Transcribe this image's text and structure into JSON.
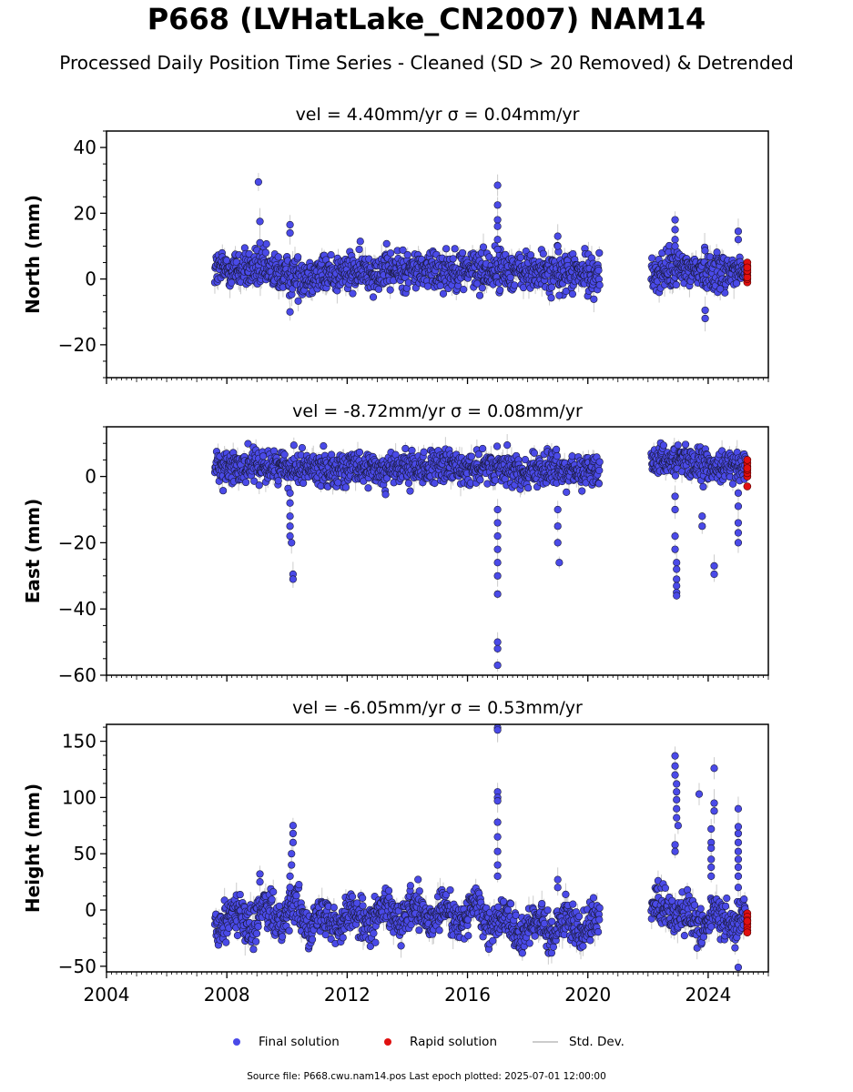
{
  "title": "P668 (LVHatLake_CN2007) NAM14",
  "subtitle": "Processed Daily Position Time Series - Cleaned (SD > 20 Removed) & Detrended",
  "footer": "Source file: P668.cwu.nam14.pos  Last epoch plotted: 2025-07-01 12:00:00",
  "legend": {
    "final": "Final solution",
    "rapid": "Rapid solution",
    "stddev": "Std. Dev."
  },
  "colors": {
    "final": "#4a4ae8",
    "rapid": "#e01010",
    "stddev": "#cccccc",
    "edge": "#1a1a3a"
  },
  "chart_data": [
    {
      "type": "scatter",
      "panel": "north",
      "title": "vel = 4.40mm/yr   σ = 0.04mm/yr",
      "ylabel": "North (mm)",
      "xlim": [
        2004,
        2026
      ],
      "ylim": [
        -30,
        45
      ],
      "yticks": [
        -20,
        0,
        20,
        40
      ],
      "xticks": [
        2004,
        2008,
        2012,
        2016,
        2020,
        2024
      ],
      "data_span": [
        2007.6,
        2025.4
      ],
      "gap": [
        2020.4,
        2022.1
      ],
      "base": [
        [
          2007.6,
          3
        ],
        [
          2009.0,
          3
        ],
        [
          2010.2,
          1
        ],
        [
          2013,
          2.5
        ],
        [
          2016,
          3
        ],
        [
          2017.5,
          2.5
        ],
        [
          2020.3,
          1.5
        ],
        [
          2022.1,
          1
        ],
        [
          2022.8,
          3
        ],
        [
          2023.3,
          3
        ],
        [
          2025.4,
          2
        ]
      ],
      "noise": 3,
      "outliers": [
        [
          2009.05,
          29.5
        ],
        [
          2009.1,
          17.5
        ],
        [
          2009.1,
          11
        ],
        [
          2010.1,
          16.5
        ],
        [
          2010.1,
          14
        ],
        [
          2010.1,
          -10
        ],
        [
          2017.0,
          28.5
        ],
        [
          2017.0,
          22.5
        ],
        [
          2017.0,
          18
        ],
        [
          2017.0,
          16
        ],
        [
          2017.0,
          12
        ],
        [
          2017.0,
          9
        ],
        [
          2019.0,
          13
        ],
        [
          2019.0,
          10
        ],
        [
          2019.05,
          -5
        ],
        [
          2022.9,
          18
        ],
        [
          2022.9,
          15
        ],
        [
          2022.9,
          12
        ],
        [
          2022.9,
          10
        ],
        [
          2023.9,
          -9.5
        ],
        [
          2023.9,
          -12
        ],
        [
          2024.4,
          -3
        ],
        [
          2025.0,
          14.5
        ],
        [
          2025.0,
          12
        ]
      ],
      "rapid": {
        "x": 2025.3,
        "y_values": [
          -1,
          0,
          1,
          2,
          3,
          4,
          5,
          0.5,
          2.5,
          3.5
        ]
      }
    },
    {
      "type": "scatter",
      "panel": "east",
      "title": "vel = -8.72mm/yr   σ = 0.08mm/yr",
      "ylabel": "East (mm)",
      "xlim": [
        2004,
        2026
      ],
      "ylim": [
        -60,
        15
      ],
      "yticks": [
        -60,
        -40,
        -20,
        0
      ],
      "xticks": [
        2004,
        2008,
        2012,
        2016,
        2020,
        2024
      ],
      "data_span": [
        2007.6,
        2025.4
      ],
      "gap": [
        2020.4,
        2022.1
      ],
      "base": [
        [
          2007.6,
          3
        ],
        [
          2010.2,
          3
        ],
        [
          2013,
          2
        ],
        [
          2016,
          3
        ],
        [
          2017.5,
          2
        ],
        [
          2020.3,
          2
        ],
        [
          2022.1,
          3
        ],
        [
          2023.2,
          6
        ],
        [
          2023.6,
          3
        ],
        [
          2025.4,
          3
        ]
      ],
      "noise": 2.5,
      "outliers": [
        [
          2010.1,
          -5
        ],
        [
          2010.1,
          -8
        ],
        [
          2010.1,
          -12
        ],
        [
          2010.1,
          -15
        ],
        [
          2010.1,
          -18
        ],
        [
          2010.15,
          -20
        ],
        [
          2010.2,
          -29.5
        ],
        [
          2010.2,
          -31
        ],
        [
          2017.0,
          -10
        ],
        [
          2017.0,
          -14
        ],
        [
          2017.0,
          -18
        ],
        [
          2017.0,
          -22
        ],
        [
          2017.0,
          -26
        ],
        [
          2017.0,
          -30
        ],
        [
          2017.0,
          -35.5
        ],
        [
          2017.0,
          -50
        ],
        [
          2017.0,
          -52
        ],
        [
          2017.0,
          -57
        ],
        [
          2019.0,
          -10
        ],
        [
          2019.0,
          -15
        ],
        [
          2019.0,
          -20
        ],
        [
          2019.05,
          -26
        ],
        [
          2022.9,
          -6
        ],
        [
          2022.9,
          -10
        ],
        [
          2022.9,
          -18
        ],
        [
          2022.9,
          -22
        ],
        [
          2022.95,
          -26
        ],
        [
          2022.95,
          -28
        ],
        [
          2022.95,
          -31
        ],
        [
          2022.95,
          -33
        ],
        [
          2022.95,
          -35
        ],
        [
          2022.95,
          -36
        ],
        [
          2023.8,
          -12
        ],
        [
          2023.8,
          -15
        ],
        [
          2024.2,
          -27
        ],
        [
          2024.2,
          -29.5
        ],
        [
          2025.0,
          -5
        ],
        [
          2025.0,
          -9
        ],
        [
          2025.0,
          -14
        ],
        [
          2025.0,
          -17
        ],
        [
          2025.0,
          -20
        ]
      ],
      "rapid": {
        "x": 2025.3,
        "y_values": [
          -3,
          0,
          1,
          2,
          3,
          4,
          5,
          2.5
        ]
      }
    },
    {
      "type": "scatter",
      "panel": "height",
      "title": "vel = -6.05mm/yr   σ = 0.53mm/yr",
      "ylabel": "Height (mm)",
      "xlim": [
        2004,
        2026
      ],
      "ylim": [
        -55,
        165
      ],
      "yticks": [
        -50,
        0,
        50,
        100,
        150
      ],
      "xticks": [
        2004,
        2008,
        2012,
        2016,
        2020,
        2024
      ],
      "xtick_labels": [
        "2004",
        "2008",
        "2012",
        "2016",
        "2020",
        "2024"
      ],
      "data_span": [
        2007.6,
        2025.4
      ],
      "gap": [
        2020.4,
        2022.1
      ],
      "base": [
        [
          2007.6,
          -5
        ],
        [
          2009.0,
          -8
        ],
        [
          2010.0,
          0
        ],
        [
          2011,
          -8
        ],
        [
          2013,
          -5
        ],
        [
          2016,
          -5
        ],
        [
          2016.3,
          0
        ],
        [
          2017.5,
          -15
        ],
        [
          2020.3,
          -12
        ],
        [
          2022.1,
          -5
        ],
        [
          2022.6,
          8
        ],
        [
          2023.2,
          -10
        ],
        [
          2025.4,
          -8
        ]
      ],
      "noise": 9,
      "outliers": [
        [
          2009.1,
          32
        ],
        [
          2009.1,
          25
        ],
        [
          2010.1,
          20
        ],
        [
          2010.1,
          30
        ],
        [
          2010.15,
          40
        ],
        [
          2010.15,
          50
        ],
        [
          2010.2,
          60
        ],
        [
          2010.2,
          68
        ],
        [
          2010.2,
          75
        ],
        [
          2017.0,
          162
        ],
        [
          2017.0,
          160
        ],
        [
          2017.0,
          105
        ],
        [
          2017.0,
          100
        ],
        [
          2017.0,
          97
        ],
        [
          2017.0,
          78
        ],
        [
          2017.0,
          65
        ],
        [
          2017.0,
          52
        ],
        [
          2017.0,
          40
        ],
        [
          2017.0,
          30
        ],
        [
          2019.0,
          27
        ],
        [
          2019.0,
          20
        ],
        [
          2022.9,
          137
        ],
        [
          2022.9,
          128
        ],
        [
          2022.9,
          120
        ],
        [
          2022.95,
          112
        ],
        [
          2022.95,
          105
        ],
        [
          2022.95,
          98
        ],
        [
          2022.95,
          90
        ],
        [
          2022.95,
          82
        ],
        [
          2023.0,
          75
        ],
        [
          2022.9,
          58
        ],
        [
          2022.9,
          52
        ],
        [
          2023.7,
          103
        ],
        [
          2024.2,
          126
        ],
        [
          2024.2,
          95
        ],
        [
          2024.2,
          88
        ],
        [
          2024.1,
          72
        ],
        [
          2024.1,
          60
        ],
        [
          2024.1,
          55
        ],
        [
          2024.1,
          45
        ],
        [
          2024.1,
          38
        ],
        [
          2024.1,
          30
        ],
        [
          2025.0,
          90
        ],
        [
          2025.0,
          74
        ],
        [
          2025.0,
          68
        ],
        [
          2025.0,
          60
        ],
        [
          2025.0,
          52
        ],
        [
          2025.0,
          45
        ],
        [
          2025.0,
          38
        ],
        [
          2025.0,
          30
        ],
        [
          2025.0,
          20
        ],
        [
          2025.0,
          -51
        ]
      ],
      "rapid": {
        "x": 2025.3,
        "y_values": [
          -3,
          -6,
          -9,
          -12,
          -15,
          -18,
          -20,
          -10
        ]
      }
    }
  ]
}
